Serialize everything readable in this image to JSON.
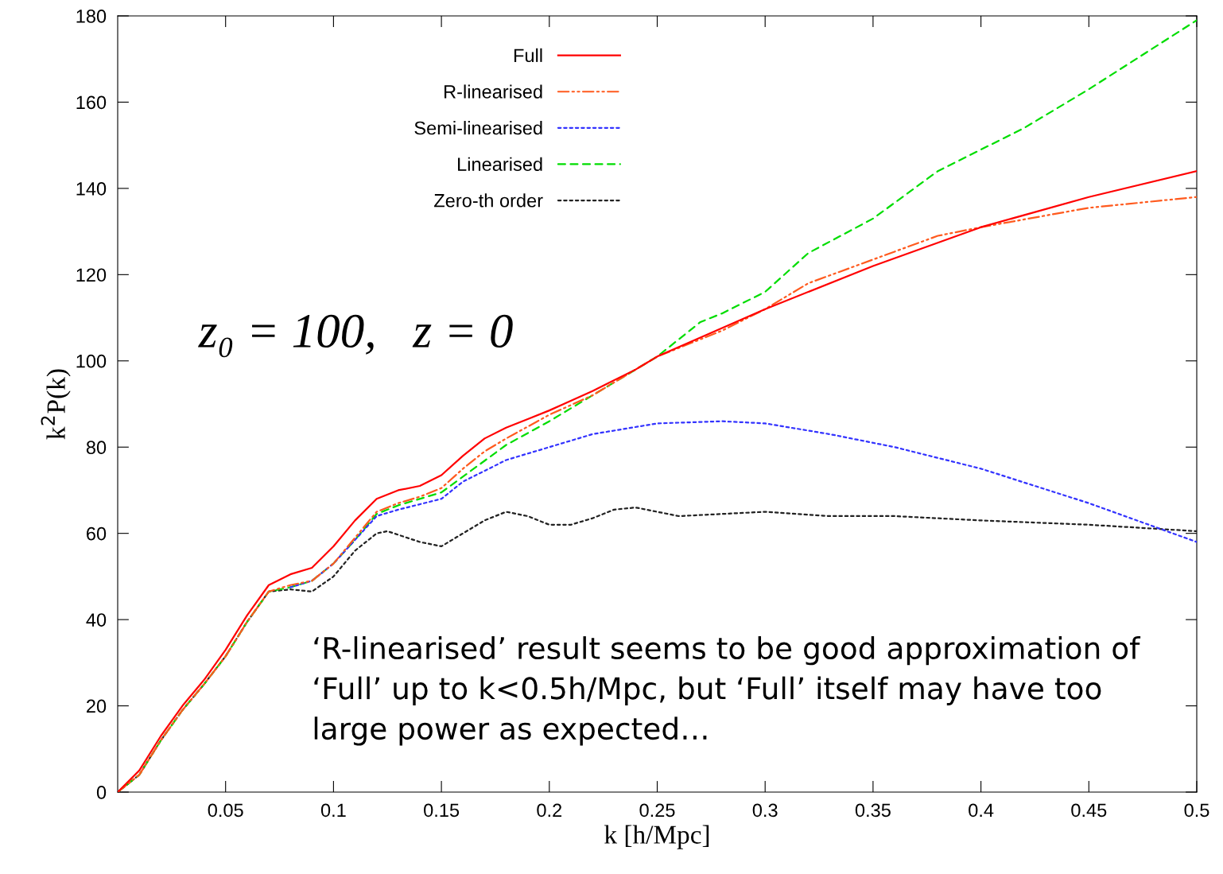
{
  "chart_data": {
    "type": "line",
    "xlabel": "k [h/Mpc]",
    "ylabel": "k$^{2}$P(k)",
    "xlim": [
      0,
      0.5
    ],
    "ylim": [
      0,
      180
    ],
    "xticks": [
      0.05,
      0.1,
      0.15,
      0.2,
      0.25,
      0.3,
      0.35,
      0.4,
      0.45,
      0.5
    ],
    "yticks": [
      0,
      20,
      40,
      60,
      80,
      100,
      120,
      140,
      160,
      180
    ],
    "grid": false,
    "legend": "top",
    "marker": "none",
    "annotations": [
      "z₀ = 100,   z = 0",
      "‘R-linearised’ result seems to be good approximation of ‘Full’ up to k<0.5h/Mpc, but ‘Full’ itself may have too large power as expected…"
    ],
    "series": [
      {
        "name": "Full",
        "color": "#ff0000",
        "line_style": "solid",
        "x": [
          0,
          0.01,
          0.02,
          0.03,
          0.04,
          0.05,
          0.06,
          0.07,
          0.08,
          0.09,
          0.1,
          0.11,
          0.12,
          0.13,
          0.14,
          0.15,
          0.16,
          0.17,
          0.18,
          0.19,
          0.2,
          0.22,
          0.24,
          0.25,
          0.3,
          0.35,
          0.4,
          0.45,
          0.5
        ],
        "values": [
          0,
          5,
          13,
          20,
          26,
          33,
          41,
          48,
          50.5,
          52,
          57,
          63,
          68,
          70,
          71,
          73.5,
          78,
          82,
          84.5,
          86.5,
          88.5,
          93,
          98,
          101,
          112,
          122,
          131,
          138,
          144
        ]
      },
      {
        "name": "R-linearised",
        "color": "#ff5a1e",
        "line_style": "dashdot",
        "x": [
          0,
          0.01,
          0.02,
          0.03,
          0.04,
          0.05,
          0.06,
          0.07,
          0.08,
          0.09,
          0.1,
          0.11,
          0.12,
          0.13,
          0.14,
          0.15,
          0.16,
          0.17,
          0.18,
          0.2,
          0.22,
          0.25,
          0.28,
          0.3,
          0.32,
          0.35,
          0.38,
          0.4,
          0.45,
          0.5
        ],
        "values": [
          0,
          4,
          12,
          19,
          25,
          31.5,
          39.5,
          46.5,
          48,
          49,
          53,
          59,
          65,
          67,
          68.5,
          70.5,
          75,
          79,
          82,
          87.5,
          92,
          101,
          107,
          112,
          118,
          123.5,
          129,
          131,
          135.5,
          138
        ]
      },
      {
        "name": "Semi-linearised",
        "color": "#3333ff",
        "line_style": "dotted",
        "x": [
          0.08,
          0.09,
          0.1,
          0.11,
          0.12,
          0.13,
          0.15,
          0.16,
          0.18,
          0.2,
          0.22,
          0.25,
          0.28,
          0.3,
          0.33,
          0.36,
          0.4,
          0.45,
          0.5
        ],
        "values": [
          47.5,
          49,
          53,
          58.5,
          64,
          65.5,
          68,
          72,
          77,
          80,
          83,
          85.5,
          86,
          85.5,
          83,
          80,
          75,
          67,
          58
        ]
      },
      {
        "name": "Linearised",
        "color": "#00dd00",
        "line_style": "dashed",
        "x": [
          0,
          0.01,
          0.02,
          0.03,
          0.04,
          0.05,
          0.06,
          0.07,
          0.08,
          0.09,
          0.1,
          0.11,
          0.12,
          0.13,
          0.15,
          0.18,
          0.2,
          0.23,
          0.25,
          0.26,
          0.27,
          0.28,
          0.3,
          0.32,
          0.35,
          0.38,
          0.4,
          0.42,
          0.45,
          0.5
        ],
        "values": [
          0,
          4,
          12,
          19,
          25,
          31.5,
          39.5,
          46.5,
          47.5,
          49,
          53,
          58.5,
          64.5,
          66.5,
          69.5,
          80.5,
          86,
          95,
          101,
          105,
          109,
          111,
          116,
          125,
          133,
          144,
          149,
          154,
          163,
          179
        ]
      },
      {
        "name": "Zero-th order",
        "color": "#222222",
        "line_style": "dotted",
        "x": [
          0,
          0.01,
          0.02,
          0.03,
          0.04,
          0.05,
          0.06,
          0.07,
          0.08,
          0.09,
          0.1,
          0.11,
          0.12,
          0.125,
          0.14,
          0.15,
          0.16,
          0.17,
          0.18,
          0.19,
          0.2,
          0.21,
          0.22,
          0.23,
          0.24,
          0.26,
          0.28,
          0.3,
          0.33,
          0.36,
          0.4,
          0.45,
          0.5
        ],
        "values": [
          0,
          4,
          12,
          19,
          25,
          31.5,
          39.5,
          46.5,
          47,
          46.5,
          50,
          56,
          60,
          60.5,
          58,
          57,
          60,
          63,
          65,
          64,
          62,
          62,
          63.5,
          65.5,
          66,
          64,
          64.5,
          65,
          64,
          64,
          63,
          62,
          60.5
        ]
      }
    ]
  }
}
